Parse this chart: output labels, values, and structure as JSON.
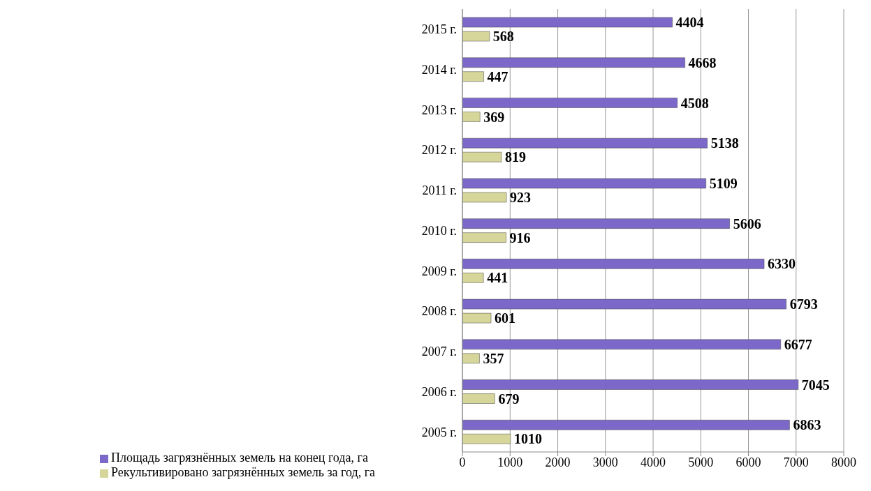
{
  "chart_data": {
    "type": "bar",
    "orientation": "horizontal",
    "categories": [
      "2015 г.",
      "2014 г.",
      "2013 г.",
      "2012 г.",
      "2011 г.",
      "2010 г.",
      "2009 г.",
      "2008 г.",
      "2007 г.",
      "2006 г.",
      "2005 г."
    ],
    "series": [
      {
        "name": "Площадь загрязнённых земель на конец года, га",
        "color": "#7b68c8",
        "values": [
          4404,
          4668,
          4508,
          5138,
          5109,
          5606,
          6330,
          6793,
          6677,
          7045,
          6863
        ]
      },
      {
        "name": "Рекультивировано загрязнённых земель за год, га",
        "color": "#d6d69a",
        "values": [
          568,
          447,
          369,
          819,
          923,
          916,
          441,
          601,
          357,
          679,
          1010
        ]
      }
    ],
    "xlim": [
      0,
      8000
    ],
    "xticks": [
      0,
      1000,
      2000,
      3000,
      4000,
      5000,
      6000,
      7000,
      8000
    ],
    "grid": "x",
    "data_labels": true,
    "legend": "bottom left"
  }
}
